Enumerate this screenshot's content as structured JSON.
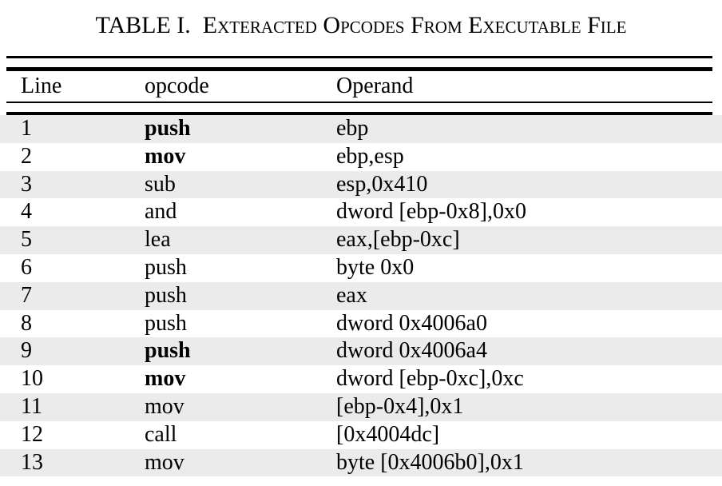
{
  "caption": {
    "label": "TABLE I.",
    "title": "Exteracted Opcodes From Executable File"
  },
  "table": {
    "headers": {
      "line": "Line",
      "opcode": "opcode",
      "operand": "Operand"
    },
    "rows": [
      {
        "line": "1",
        "opcode": "push",
        "operand": "ebp",
        "bold": true
      },
      {
        "line": "2",
        "opcode": "mov",
        "operand": "ebp,esp",
        "bold": true
      },
      {
        "line": "3",
        "opcode": "sub",
        "operand": "esp,0x410",
        "bold": false
      },
      {
        "line": "4",
        "opcode": "and",
        "operand": "dword [ebp-0x8],0x0",
        "bold": false
      },
      {
        "line": "5",
        "opcode": "lea",
        "operand": "eax,[ebp-0xc]",
        "bold": false
      },
      {
        "line": "6",
        "opcode": "push",
        "operand": "byte 0x0",
        "bold": false
      },
      {
        "line": "7",
        "opcode": "push",
        "operand": "eax",
        "bold": false
      },
      {
        "line": "8",
        "opcode": "push",
        "operand": "dword 0x4006a0",
        "bold": false
      },
      {
        "line": "9",
        "opcode": "push",
        "operand": "dword 0x4006a4",
        "bold": true
      },
      {
        "line": "10",
        "opcode": "mov",
        "operand": "dword [ebp-0xc],0xc",
        "bold": true
      },
      {
        "line": "11",
        "opcode": "mov",
        "operand": "[ebp-0x4],0x1",
        "bold": false
      },
      {
        "line": "12",
        "opcode": "call",
        "operand": "[0x4004dc]",
        "bold": false
      },
      {
        "line": "13",
        "opcode": "mov",
        "operand": "byte [0x4006b0],0x1",
        "bold": false
      }
    ]
  }
}
